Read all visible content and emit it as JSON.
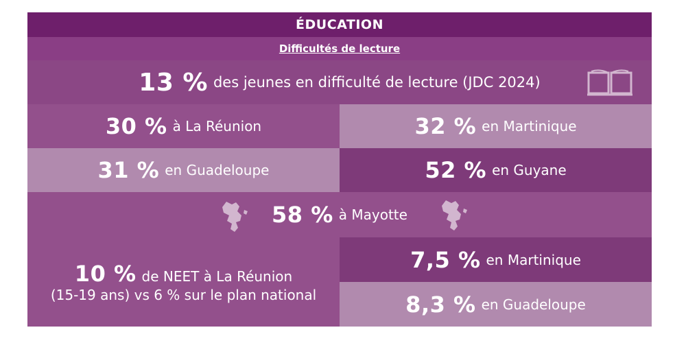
{
  "header": {
    "title": "ÉDUCATION",
    "subtitle": "Difficultés de lecture"
  },
  "main_stat": {
    "value": "13 %",
    "text": "des jeunes en difficulté de lecture (JDC 2024)",
    "icon": "book-icon"
  },
  "regions": [
    {
      "value": "30 %",
      "text": "à La Réunion"
    },
    {
      "value": "32 %",
      "text": "en Martinique"
    },
    {
      "value": "31 %",
      "text": "en Guadeloupe"
    },
    {
      "value": "52 %",
      "text": "en Guyane"
    }
  ],
  "mayotte": {
    "value": "58 %",
    "text": "à Mayotte",
    "icon": "mayotte-map-icon"
  },
  "neet": {
    "value": "10 %",
    "text": "de NEET à La Réunion",
    "text2": "(15-19 ans) vs 6 % sur le plan national",
    "martinique": {
      "value": "7,5 %",
      "text": "en Martinique"
    },
    "guadeloupe": {
      "value": "8,3 %",
      "text": "en Guadeloupe"
    }
  },
  "colors": {
    "dark": "#6e1f6b",
    "medium": "#93508c",
    "light": "#b18aae",
    "icon": "#d2b6cf"
  }
}
